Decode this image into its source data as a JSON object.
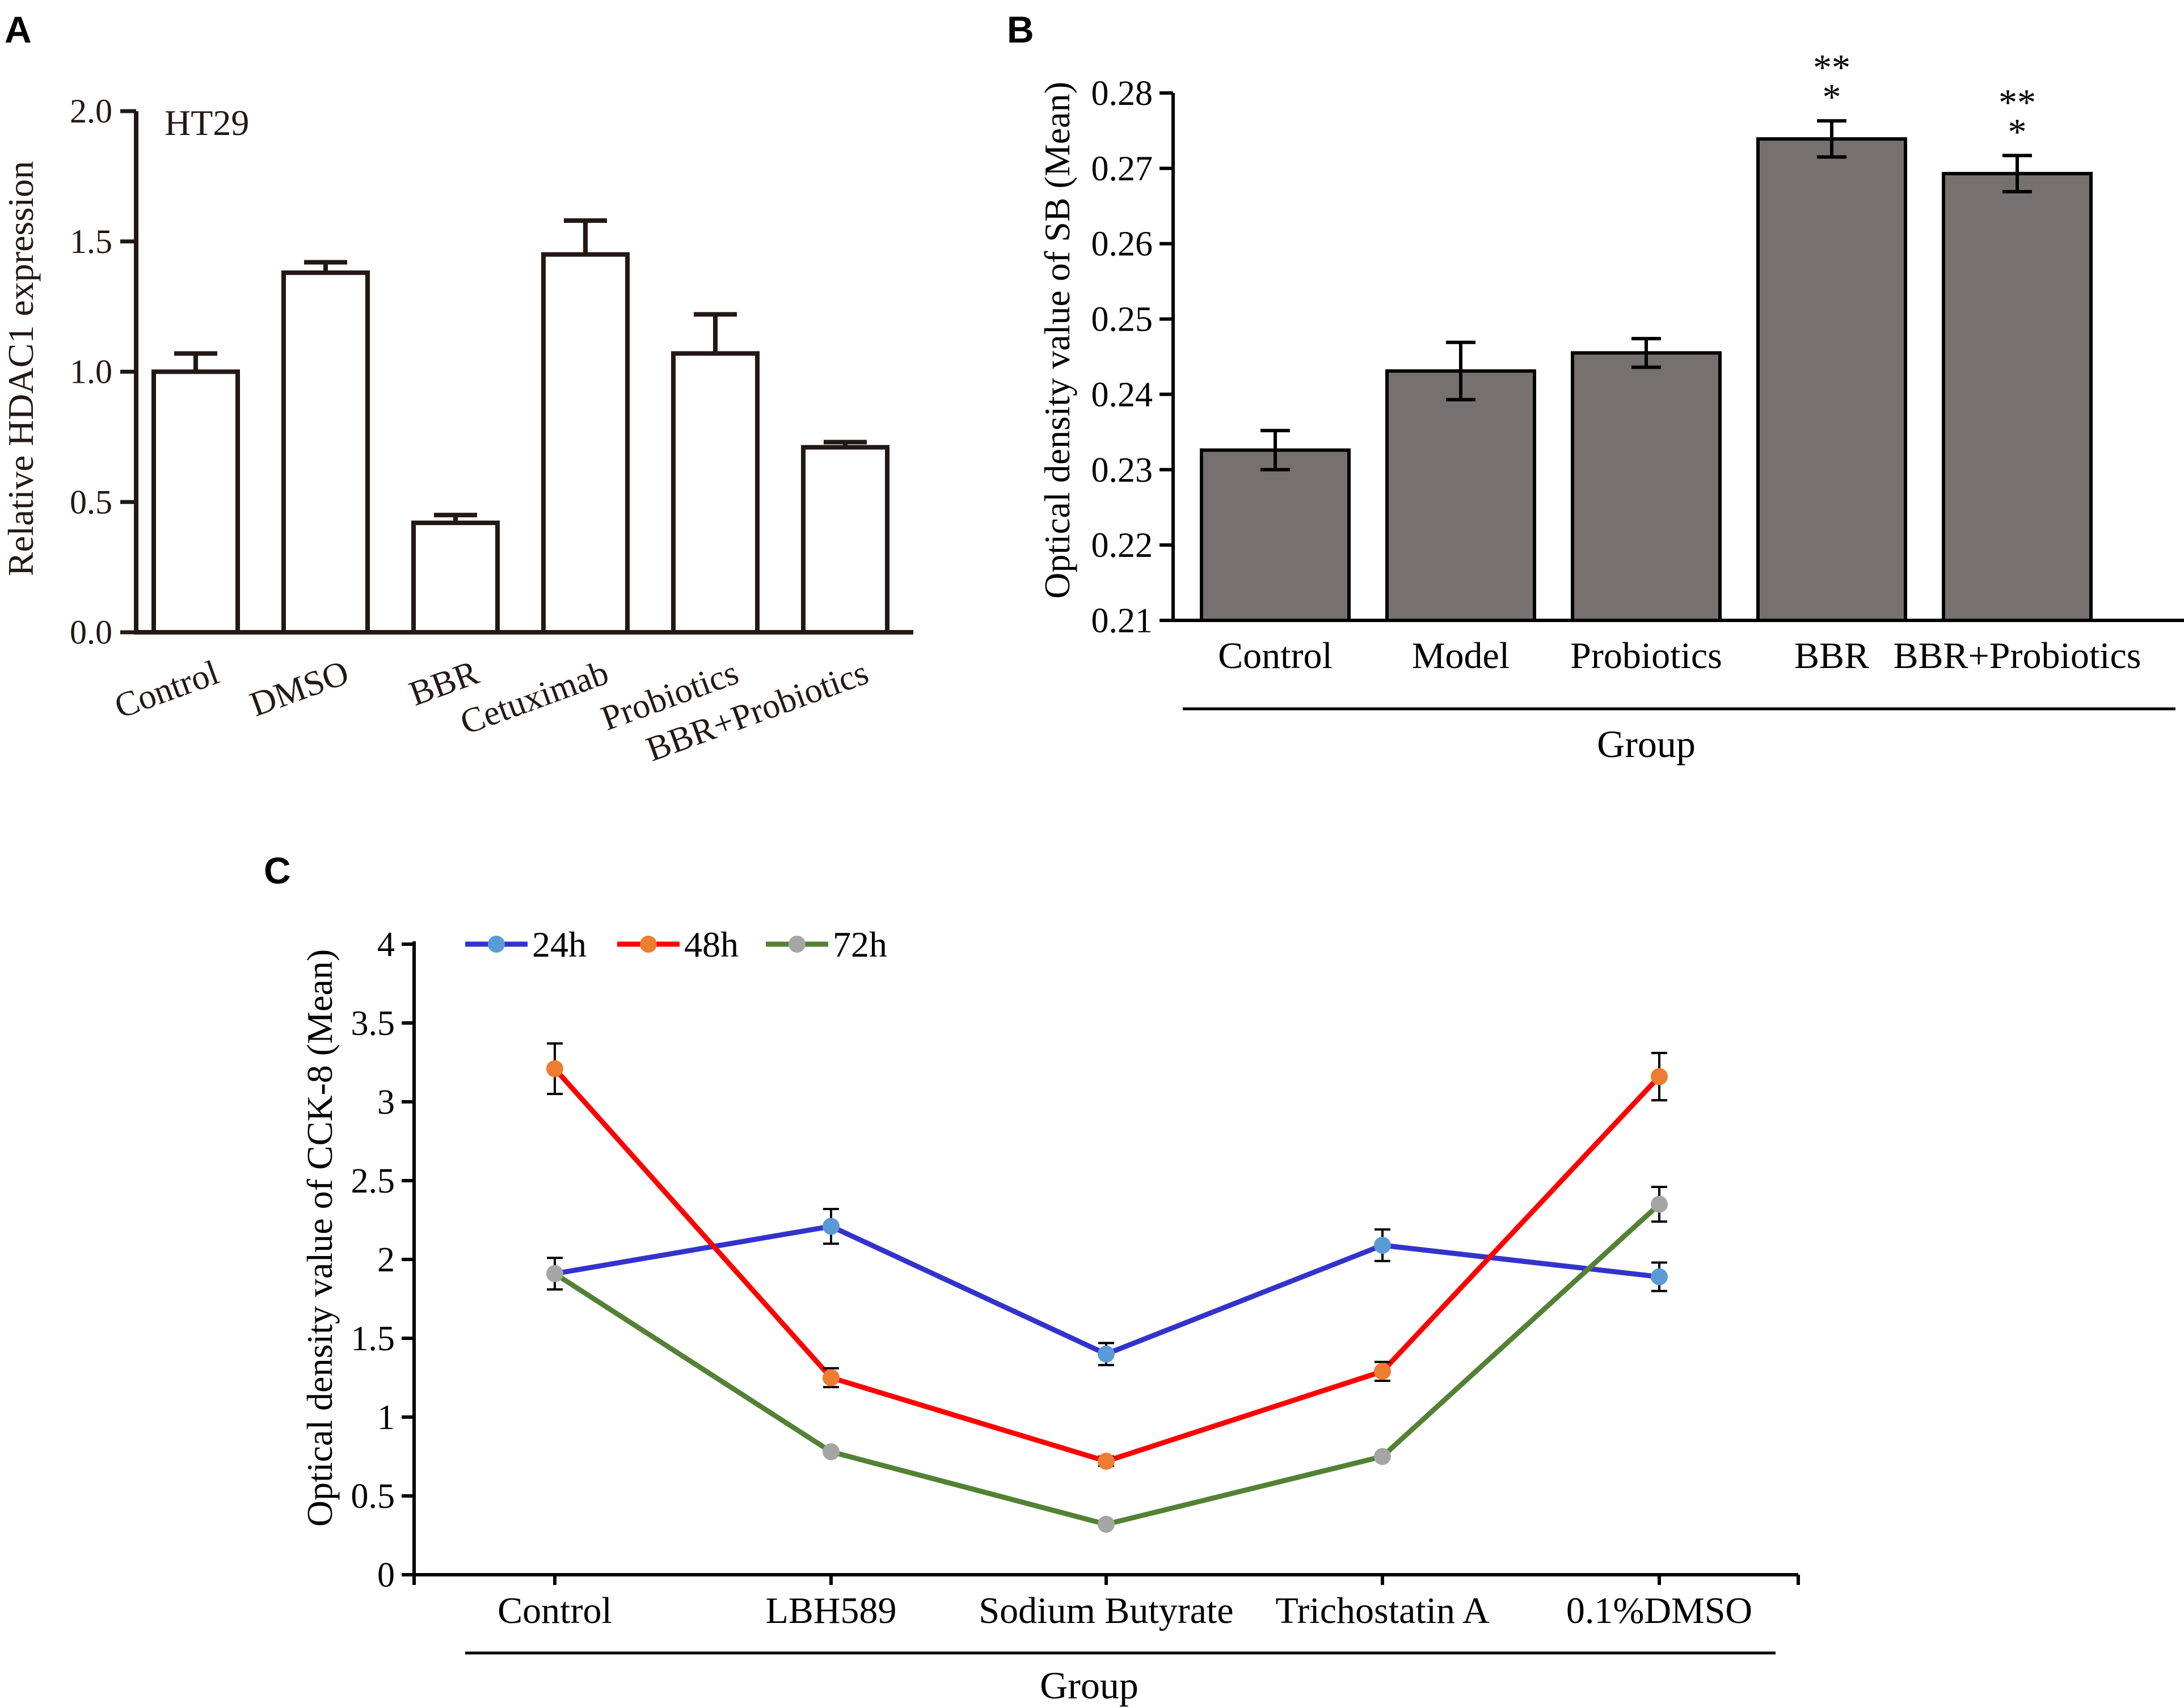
{
  "panels": {
    "A": {
      "letter": "A"
    },
    "B": {
      "letter": "B"
    },
    "C": {
      "letter": "C"
    }
  },
  "chart_data": [
    {
      "id": "A",
      "type": "bar",
      "title": "",
      "annotation": "HT29",
      "ylabel": "Relative HDAC1 expression",
      "xlabel": "",
      "ylim": [
        0,
        2.0
      ],
      "yticks": [
        "0.0",
        "0.5",
        "1.0",
        "1.5",
        "2.0"
      ],
      "categories": [
        "Control",
        "DMSO",
        "BBR",
        "Cetuximab",
        "Probiotics",
        "BBR+Probiotics"
      ],
      "values": [
        1.0,
        1.38,
        0.42,
        1.45,
        1.07,
        0.71
      ],
      "errors": [
        0.07,
        0.04,
        0.03,
        0.13,
        0.15,
        0.02
      ],
      "colors": {
        "fill": "#ffffff",
        "stroke": "#231815"
      }
    },
    {
      "id": "B",
      "type": "bar",
      "ylabel": "Optical density value  of SB (Mean)",
      "xlabel": "Group",
      "ylim": [
        0.21,
        0.28
      ],
      "yticks": [
        "0.21",
        "0.22",
        "0.23",
        "0.24",
        "0.25",
        "0.26",
        "0.27",
        "0.28"
      ],
      "categories": [
        "Control",
        "Model",
        "Probiotics",
        "BBR",
        "BBR+Probiotics"
      ],
      "values": [
        0.2326,
        0.2431,
        0.2455,
        0.2739,
        0.2693
      ],
      "errors": [
        0.0026,
        0.0038,
        0.0019,
        0.0024,
        0.0024
      ],
      "significance": [
        "",
        "",
        "",
        "**\n*",
        "**\n*"
      ],
      "colors": {
        "fill": "#777070",
        "stroke": "#000000"
      }
    },
    {
      "id": "C",
      "type": "line",
      "ylabel": "Optical density value of CCK-8 (Mean)",
      "xlabel": "Group",
      "ylim": [
        0,
        4
      ],
      "yticks": [
        "0",
        "0.5",
        "1",
        "1.5",
        "2",
        "2.5",
        "3",
        "3.5",
        "4"
      ],
      "categories": [
        "Control",
        "LBH589",
        "Sodium Butyrate",
        "Trichostatin A",
        "0.1%DMSO"
      ],
      "series": [
        {
          "name": "24h",
          "values": [
            1.91,
            2.21,
            1.4,
            2.09,
            1.89
          ],
          "errors": [
            0.1,
            0.11,
            0.07,
            0.1,
            0.09
          ],
          "line": "#3333cc",
          "marker": "#5b9bd5"
        },
        {
          "name": "48h",
          "values": [
            3.21,
            1.25,
            0.72,
            1.29,
            3.16
          ],
          "errors": [
            0.16,
            0.06,
            0.03,
            0.06,
            0.15
          ],
          "line": "#ff0000",
          "marker": "#ed7d31"
        },
        {
          "name": "72h",
          "values": [
            1.91,
            0.78,
            0.32,
            0.75,
            2.35
          ],
          "errors": [
            0.0,
            0.0,
            0.0,
            0.0,
            0.11
          ],
          "line": "#538135",
          "marker": "#a5a5a5"
        }
      ]
    }
  ]
}
